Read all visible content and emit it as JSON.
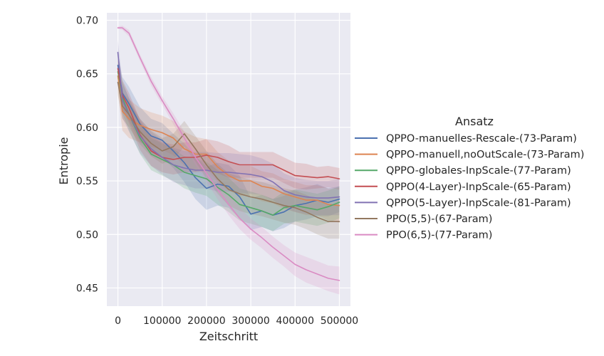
{
  "chart_data": {
    "type": "line",
    "xlabel": "Zeitschritt",
    "ylabel": "Entropie",
    "xlim": [
      -25000,
      525000
    ],
    "ylim": [
      0.433,
      0.707
    ],
    "xticks": [
      0,
      100000,
      200000,
      300000,
      400000,
      500000
    ],
    "xtick_labels": [
      "0",
      "100000",
      "200000",
      "300000",
      "400000",
      "500000"
    ],
    "yticks": [
      0.45,
      0.5,
      0.55,
      0.6,
      0.65,
      0.7
    ],
    "ytick_labels": [
      "0.45",
      "0.50",
      "0.55",
      "0.60",
      "0.65",
      "0.70"
    ],
    "grid": true,
    "legend": {
      "title": "Ansatz",
      "placement": "right-outside"
    },
    "series": [
      {
        "name": "QPPO-manuelles-Rescale-(73-Param)",
        "color": "#4c72b0",
        "x": [
          0,
          10000,
          25000,
          50000,
          75000,
          100000,
          125000,
          150000,
          175000,
          200000,
          225000,
          250000,
          275000,
          300000,
          325000,
          350000,
          375000,
          400000,
          425000,
          450000,
          475000,
          500000
        ],
        "y": [
          0.658,
          0.632,
          0.622,
          0.603,
          0.592,
          0.588,
          0.578,
          0.567,
          0.553,
          0.543,
          0.547,
          0.545,
          0.535,
          0.519,
          0.522,
          0.518,
          0.521,
          0.527,
          0.529,
          0.532,
          0.53,
          0.533
        ],
        "band": [
          0.012,
          0.015,
          0.016,
          0.016,
          0.016,
          0.016,
          0.016,
          0.018,
          0.02,
          0.02,
          0.02,
          0.02,
          0.02,
          0.015,
          0.015,
          0.015,
          0.015,
          0.015,
          0.015,
          0.015,
          0.013,
          0.012
        ]
      },
      {
        "name": "QPPO-manuell,noOutScale-(73-Param)",
        "color": "#dd8452",
        "x": [
          0,
          10000,
          25000,
          50000,
          75000,
          100000,
          125000,
          150000,
          175000,
          200000,
          225000,
          250000,
          275000,
          300000,
          325000,
          350000,
          375000,
          400000,
          425000,
          450000,
          475000,
          500000
        ],
        "y": [
          0.648,
          0.615,
          0.608,
          0.602,
          0.598,
          0.595,
          0.59,
          0.58,
          0.575,
          0.575,
          0.563,
          0.555,
          0.55,
          0.55,
          0.545,
          0.543,
          0.538,
          0.535,
          0.532,
          0.532,
          0.528,
          0.527
        ],
        "band": [
          0.015,
          0.018,
          0.018,
          0.016,
          0.016,
          0.016,
          0.016,
          0.016,
          0.016,
          0.014,
          0.014,
          0.014,
          0.014,
          0.014,
          0.014,
          0.014,
          0.014,
          0.014,
          0.014,
          0.014,
          0.015,
          0.016
        ]
      },
      {
        "name": "QPPO-globales-InpScale-(77-Param)",
        "color": "#55a868",
        "x": [
          0,
          10000,
          25000,
          50000,
          75000,
          100000,
          125000,
          150000,
          175000,
          200000,
          225000,
          250000,
          275000,
          300000,
          325000,
          350000,
          375000,
          400000,
          425000,
          450000,
          475000,
          500000
        ],
        "y": [
          0.652,
          0.628,
          0.612,
          0.59,
          0.575,
          0.57,
          0.565,
          0.558,
          0.555,
          0.552,
          0.544,
          0.537,
          0.528,
          0.525,
          0.522,
          0.518,
          0.525,
          0.527,
          0.525,
          0.523,
          0.526,
          0.53
        ],
        "band": [
          0.012,
          0.015,
          0.015,
          0.015,
          0.015,
          0.015,
          0.015,
          0.015,
          0.016,
          0.016,
          0.016,
          0.016,
          0.015,
          0.015,
          0.015,
          0.015,
          0.015,
          0.015,
          0.015,
          0.015,
          0.015,
          0.015
        ]
      },
      {
        "name": "QPPO(4-Layer)-InpScale-(65-Param)",
        "color": "#c44e52",
        "x": [
          0,
          10000,
          25000,
          50000,
          75000,
          100000,
          125000,
          150000,
          175000,
          200000,
          225000,
          250000,
          275000,
          300000,
          325000,
          350000,
          375000,
          400000,
          425000,
          450000,
          475000,
          500000
        ],
        "y": [
          0.655,
          0.63,
          0.618,
          0.593,
          0.578,
          0.572,
          0.57,
          0.572,
          0.572,
          0.574,
          0.572,
          0.568,
          0.565,
          0.565,
          0.565,
          0.565,
          0.56,
          0.555,
          0.554,
          0.553,
          0.554,
          0.552
        ],
        "band": [
          0.012,
          0.014,
          0.014,
          0.014,
          0.014,
          0.014,
          0.014,
          0.014,
          0.014,
          0.015,
          0.015,
          0.015,
          0.012,
          0.012,
          0.012,
          0.012,
          0.012,
          0.012,
          0.012,
          0.01,
          0.01,
          0.01
        ]
      },
      {
        "name": "QPPO(5-Layer)-InpScale-(81-Param)",
        "color": "#8172b3",
        "x": [
          0,
          10000,
          25000,
          50000,
          75000,
          100000,
          125000,
          150000,
          175000,
          200000,
          225000,
          250000,
          275000,
          300000,
          325000,
          350000,
          375000,
          400000,
          425000,
          450000,
          475000,
          500000
        ],
        "y": [
          0.67,
          0.625,
          0.612,
          0.592,
          0.58,
          0.572,
          0.565,
          0.562,
          0.56,
          0.56,
          0.558,
          0.558,
          0.557,
          0.556,
          0.554,
          0.549,
          0.541,
          0.537,
          0.535,
          0.534,
          0.534,
          0.535
        ],
        "band": [
          0.012,
          0.016,
          0.016,
          0.016,
          0.016,
          0.016,
          0.016,
          0.016,
          0.017,
          0.017,
          0.018,
          0.018,
          0.018,
          0.018,
          0.017,
          0.017,
          0.016,
          0.016,
          0.016,
          0.016,
          0.016,
          0.017
        ]
      },
      {
        "name": "PPO(5,5)-(67-Param)",
        "color": "#937860",
        "x": [
          0,
          10000,
          25000,
          50000,
          75000,
          100000,
          125000,
          150000,
          175000,
          200000,
          225000,
          250000,
          275000,
          300000,
          325000,
          350000,
          375000,
          400000,
          425000,
          450000,
          475000,
          500000
        ],
        "y": [
          0.642,
          0.62,
          0.612,
          0.596,
          0.585,
          0.578,
          0.582,
          0.594,
          0.58,
          0.565,
          0.552,
          0.542,
          0.538,
          0.535,
          0.533,
          0.53,
          0.527,
          0.525,
          0.521,
          0.516,
          0.512,
          0.512
        ],
        "band": [
          0.012,
          0.012,
          0.012,
          0.012,
          0.012,
          0.012,
          0.012,
          0.012,
          0.012,
          0.013,
          0.014,
          0.015,
          0.016,
          0.016,
          0.016,
          0.016,
          0.016,
          0.016,
          0.016,
          0.016,
          0.016,
          0.016
        ]
      },
      {
        "name": "PPO(6,5)-(77-Param)",
        "color": "#da8bc3",
        "x": [
          0,
          10000,
          25000,
          50000,
          75000,
          100000,
          125000,
          150000,
          175000,
          200000,
          225000,
          250000,
          275000,
          300000,
          325000,
          350000,
          375000,
          400000,
          425000,
          450000,
          475000,
          500000
        ],
        "y": [
          0.693,
          0.693,
          0.688,
          0.665,
          0.643,
          0.625,
          0.608,
          0.59,
          0.572,
          0.557,
          0.542,
          0.528,
          0.515,
          0.505,
          0.497,
          0.488,
          0.48,
          0.472,
          0.467,
          0.463,
          0.459,
          0.457
        ],
        "band": [
          0.001,
          0.002,
          0.003,
          0.003,
          0.004,
          0.004,
          0.005,
          0.006,
          0.007,
          0.008,
          0.009,
          0.01,
          0.01,
          0.01,
          0.01,
          0.01,
          0.01,
          0.011,
          0.012,
          0.012,
          0.012,
          0.013
        ]
      }
    ]
  }
}
